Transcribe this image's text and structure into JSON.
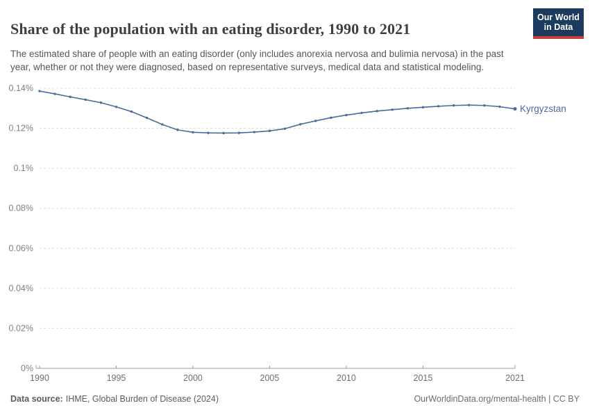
{
  "header": {
    "title": "Share of the population with an eating disorder, 1990 to 2021",
    "subtitle": "The estimated share of people with an eating disorder (only includes anorexia nervosa and bulimia nervosa) in the past year, whether or not they were diagnosed, based on representative surveys, medical data and statistical modeling.",
    "logo": {
      "line1": "Our World",
      "line2": "in Data",
      "bg_color": "#1d3a5f",
      "accent_color": "#c5403a"
    }
  },
  "chart_data": {
    "type": "line",
    "title": "Share of the population with an eating disorder, 1990 to 2021",
    "x": [
      1990,
      1991,
      1992,
      1993,
      1994,
      1995,
      1996,
      1997,
      1998,
      1999,
      2000,
      2001,
      2002,
      2003,
      2004,
      2005,
      2006,
      2007,
      2008,
      2009,
      2010,
      2011,
      2012,
      2013,
      2014,
      2015,
      2016,
      2017,
      2018,
      2019,
      2020,
      2021
    ],
    "series": [
      {
        "name": "Kyrgyzstan",
        "color": "#4C6A9C",
        "values": [
          0.1386,
          0.1372,
          0.1357,
          0.1343,
          0.1328,
          0.1307,
          0.1283,
          0.1252,
          0.1219,
          0.1192,
          0.118,
          0.1177,
          0.1176,
          0.1177,
          0.1181,
          0.1187,
          0.1198,
          0.122,
          0.1237,
          0.1253,
          0.1266,
          0.1277,
          0.1286,
          0.1293,
          0.13,
          0.1305,
          0.131,
          0.1314,
          0.1316,
          0.1314,
          0.1308,
          0.1297
        ]
      }
    ],
    "unit": "%",
    "ylim": [
      0,
      0.14
    ],
    "yticks": [
      {
        "value": 0,
        "label": "0%"
      },
      {
        "value": 0.02,
        "label": "0.02%"
      },
      {
        "value": 0.04,
        "label": "0.04%"
      },
      {
        "value": 0.06,
        "label": "0.06%"
      },
      {
        "value": 0.08,
        "label": "0.08%"
      },
      {
        "value": 0.1,
        "label": "0.1%"
      },
      {
        "value": 0.12,
        "label": "0.12%"
      },
      {
        "value": 0.14,
        "label": "0.14%"
      }
    ],
    "xticks": [
      1990,
      1995,
      2000,
      2005,
      2010,
      2015,
      2021
    ],
    "grid": "horizontal-dashed",
    "grid_color": "#dcdcdc",
    "axis_color": "#9c9c9c",
    "legend_position": "end-of-line"
  },
  "footer": {
    "datasource_label": "Data source:",
    "datasource_text": "IHME, Global Burden of Disease (2024)",
    "credit": "OurWorldinData.org/mental-health | CC BY"
  }
}
